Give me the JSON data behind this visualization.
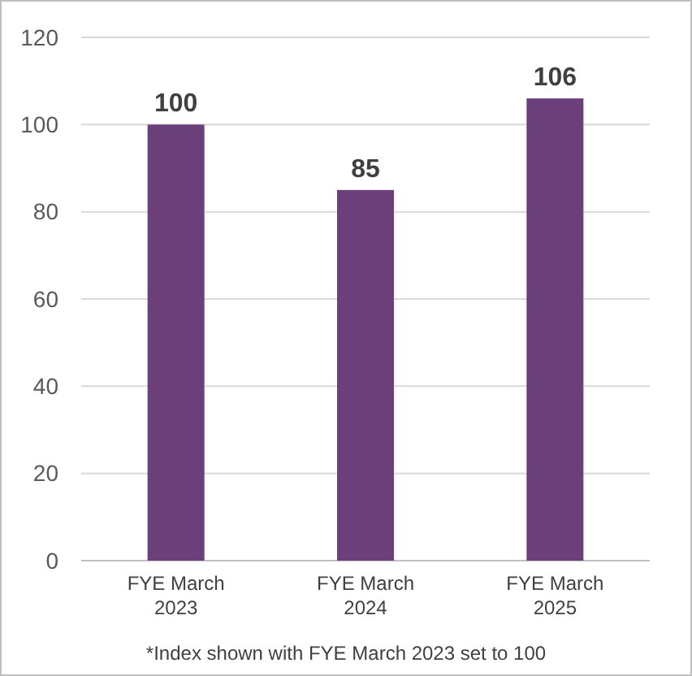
{
  "chart_data": {
    "type": "bar",
    "categories": [
      "FYE March 2023",
      "FYE March 2024",
      "FYE March 2025"
    ],
    "values": [
      100,
      85,
      106
    ],
    "color": "#6b3f7a",
    "ylim": [
      0,
      120
    ],
    "yticks": [
      0,
      20,
      40,
      60,
      80,
      100,
      120
    ],
    "grid": "y",
    "data_labels": true,
    "annotations": [
      "*Index shown with FYE March 2023 set to 100"
    ]
  }
}
